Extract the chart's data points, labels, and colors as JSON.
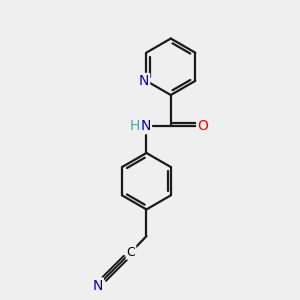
{
  "bg_color": "#efefef",
  "atom_colors": {
    "C": "#000000",
    "N": "#0000cd",
    "O": "#ff0000",
    "H": "#5f9ea0"
  },
  "bond_color": "#1a1a1a",
  "bond_width": 1.6,
  "font_size_atoms": 10,
  "fig_size": [
    3.0,
    3.0
  ],
  "dpi": 100,
  "xlim": [
    0,
    8
  ],
  "ylim": [
    0,
    10
  ]
}
